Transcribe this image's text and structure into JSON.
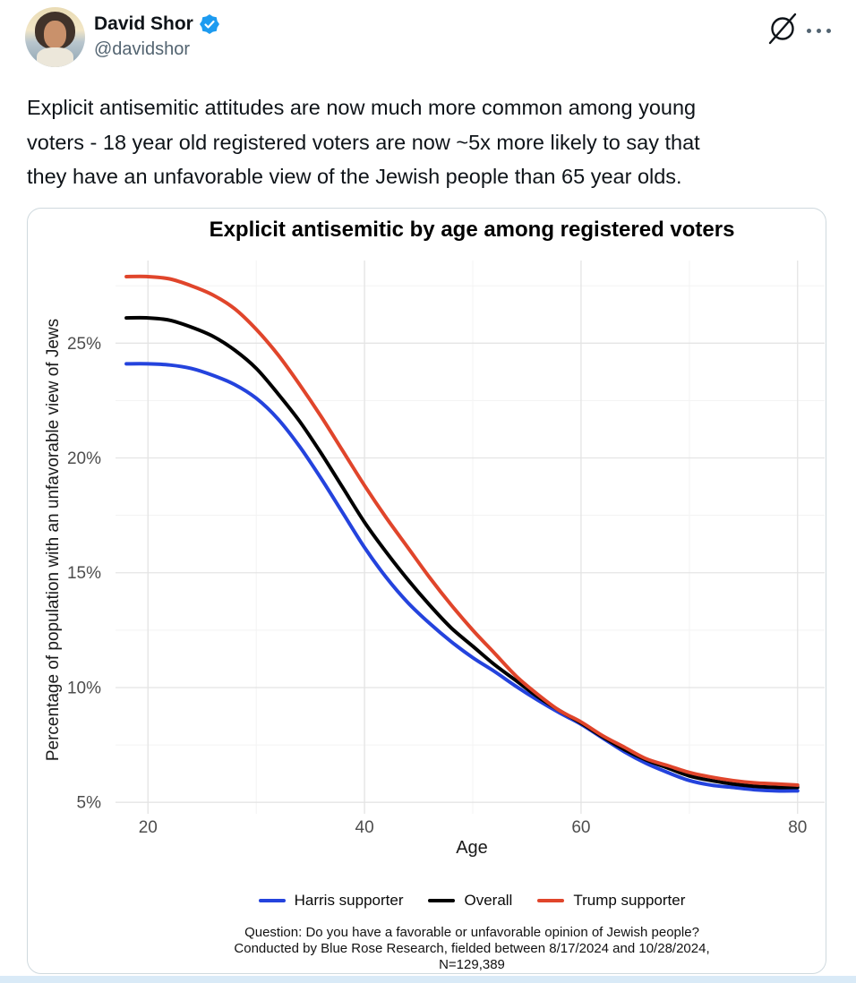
{
  "post": {
    "author": {
      "name": "David Shor",
      "handle": "@davidshor"
    },
    "icons": {
      "verified": "check-seal",
      "grok": "slashed-circle",
      "more": "three-dots"
    },
    "text_lines": [
      "Explicit antisemitic attitudes are now much more common among young",
      "voters - 18 year old registered voters are now ~5x more likely to say that",
      "they have an unfavorable view of the Jewish people than 65 year olds."
    ]
  },
  "card": {
    "caption_lines": [
      "Question: Do you have a favorable or unfavorable opinion of Jewish people?",
      "Conducted by Blue Rose Research, fielded between 8/17/2024 and 10/28/2024,",
      "N=129,389"
    ]
  },
  "colors": {
    "accent_blue": "#1d9bf0",
    "text_primary": "#0f1419",
    "text_secondary": "#536471",
    "grid_major": "#e4e4e4",
    "grid_minor": "#f3f3f3",
    "tick_label": "#4d4d4d"
  },
  "chart_data": {
    "type": "line",
    "title": "Explicit antisemitic by age among registered voters",
    "xlabel": "Age",
    "ylabel": "Percentage of population with an unfavorable view of Jews",
    "x": [
      18,
      20,
      22,
      24,
      26,
      28,
      30,
      32,
      34,
      36,
      38,
      40,
      42,
      44,
      46,
      48,
      50,
      52,
      54,
      56,
      58,
      60,
      62,
      64,
      66,
      68,
      70,
      72,
      74,
      76,
      78,
      80
    ],
    "series": [
      {
        "name": "Harris supporter",
        "color": "#2443dd",
        "values": [
          24.1,
          24.1,
          24.05,
          23.9,
          23.6,
          23.2,
          22.6,
          21.7,
          20.5,
          19.1,
          17.6,
          16.1,
          14.8,
          13.7,
          12.8,
          12.0,
          11.3,
          10.7,
          10.05,
          9.45,
          8.9,
          8.4,
          7.8,
          7.2,
          6.7,
          6.3,
          5.95,
          5.75,
          5.65,
          5.55,
          5.5,
          5.5
        ]
      },
      {
        "name": "Overall",
        "color": "#000000",
        "values": [
          26.1,
          26.1,
          26.0,
          25.7,
          25.3,
          24.7,
          23.9,
          22.8,
          21.6,
          20.2,
          18.7,
          17.2,
          15.9,
          14.7,
          13.6,
          12.6,
          11.8,
          11.0,
          10.3,
          9.6,
          9.0,
          8.45,
          7.85,
          7.3,
          6.85,
          6.5,
          6.15,
          5.95,
          5.8,
          5.7,
          5.65,
          5.65
        ]
      },
      {
        "name": "Trump supporter",
        "color": "#e0452b",
        "values": [
          27.9,
          27.9,
          27.8,
          27.5,
          27.1,
          26.5,
          25.6,
          24.5,
          23.2,
          21.8,
          20.3,
          18.8,
          17.4,
          16.1,
          14.8,
          13.6,
          12.5,
          11.5,
          10.5,
          9.7,
          9.0,
          8.5,
          7.9,
          7.4,
          6.9,
          6.6,
          6.3,
          6.1,
          5.95,
          5.85,
          5.8,
          5.75
        ]
      }
    ],
    "xticks": [
      20,
      40,
      60,
      80
    ],
    "xticks_minor": [
      30,
      50,
      70
    ],
    "yticks": [
      5,
      10,
      15,
      20,
      25
    ],
    "yticks_minor": [
      7.5,
      12.5,
      17.5,
      22.5,
      27.5
    ],
    "ytick_suffix": "%",
    "xlim": [
      17,
      82.5
    ],
    "ylim": [
      4.5,
      28.6
    ],
    "grid": true,
    "legend_position": "bottom"
  }
}
